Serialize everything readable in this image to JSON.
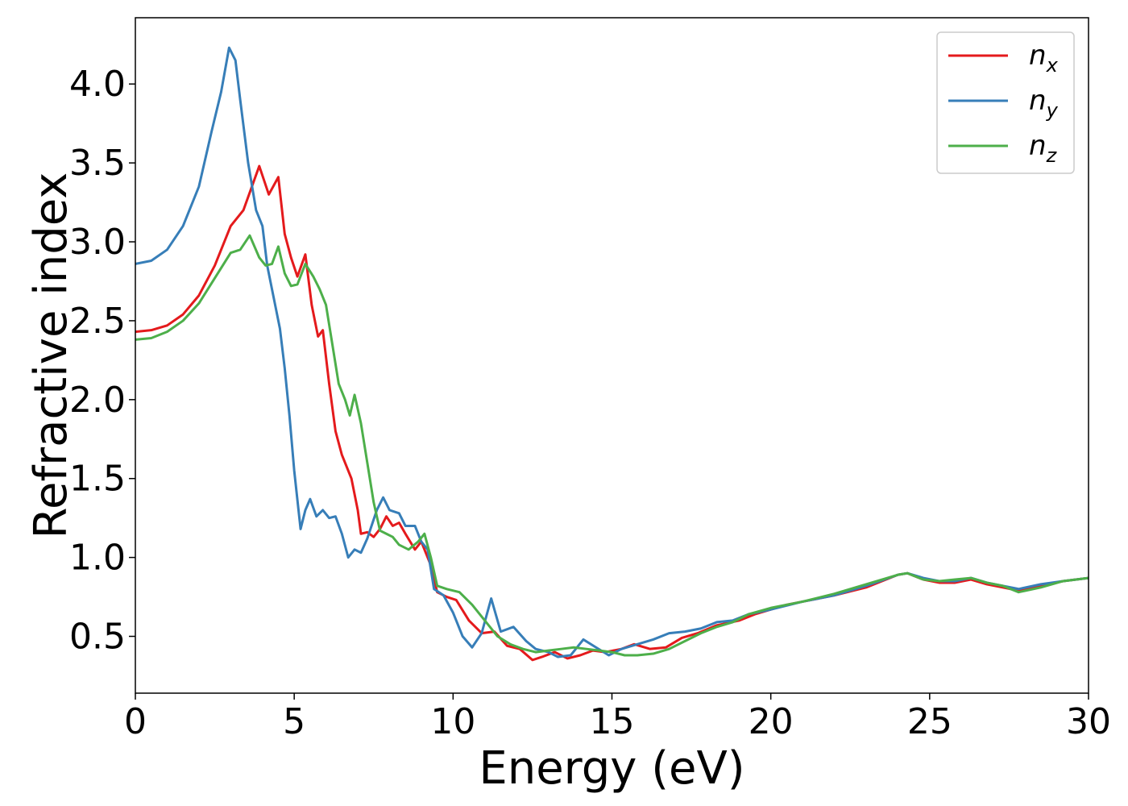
{
  "chart_data": {
    "type": "line",
    "xlabel": "Energy (eV)",
    "ylabel": "Refractive index",
    "xlim": [
      0,
      30
    ],
    "ylim": [
      0.14,
      4.42
    ],
    "xticks": [
      0,
      5,
      10,
      15,
      20,
      25,
      30
    ],
    "xtick_labels": [
      "0",
      "5",
      "10",
      "15",
      "20",
      "25",
      "30"
    ],
    "yticks": [
      0.5,
      1.0,
      1.5,
      2.0,
      2.5,
      3.0,
      3.5,
      4.0
    ],
    "ytick_labels": [
      "0.5",
      "1.0",
      "1.5",
      "2.0",
      "2.5",
      "3.0",
      "3.5",
      "4.0"
    ],
    "grid": false,
    "legend_position": "top-right",
    "series": [
      {
        "name": "n",
        "subscript": "x",
        "color": "#e41a1c",
        "points": [
          [
            0,
            2.43
          ],
          [
            0.5,
            2.44
          ],
          [
            1,
            2.47
          ],
          [
            1.5,
            2.54
          ],
          [
            2,
            2.66
          ],
          [
            2.5,
            2.85
          ],
          [
            3,
            3.1
          ],
          [
            3.4,
            3.2
          ],
          [
            3.9,
            3.48
          ],
          [
            4.2,
            3.3
          ],
          [
            4.5,
            3.41
          ],
          [
            4.7,
            3.05
          ],
          [
            4.9,
            2.9
          ],
          [
            5.1,
            2.78
          ],
          [
            5.35,
            2.92
          ],
          [
            5.55,
            2.6
          ],
          [
            5.75,
            2.4
          ],
          [
            5.9,
            2.44
          ],
          [
            6.1,
            2.1
          ],
          [
            6.3,
            1.8
          ],
          [
            6.5,
            1.65
          ],
          [
            6.8,
            1.5
          ],
          [
            7.0,
            1.3
          ],
          [
            7.1,
            1.15
          ],
          [
            7.3,
            1.16
          ],
          [
            7.5,
            1.13
          ],
          [
            7.7,
            1.18
          ],
          [
            7.9,
            1.26
          ],
          [
            8.1,
            1.2
          ],
          [
            8.3,
            1.22
          ],
          [
            8.5,
            1.15
          ],
          [
            8.8,
            1.05
          ],
          [
            9.0,
            1.1
          ],
          [
            9.3,
            0.95
          ],
          [
            9.5,
            0.78
          ],
          [
            9.8,
            0.75
          ],
          [
            10.1,
            0.73
          ],
          [
            10.5,
            0.6
          ],
          [
            10.9,
            0.52
          ],
          [
            11.3,
            0.53
          ],
          [
            11.7,
            0.44
          ],
          [
            12.1,
            0.42
          ],
          [
            12.5,
            0.35
          ],
          [
            12.8,
            0.37
          ],
          [
            13.2,
            0.4
          ],
          [
            13.6,
            0.36
          ],
          [
            14,
            0.38
          ],
          [
            14.4,
            0.41
          ],
          [
            14.8,
            0.4
          ],
          [
            15.3,
            0.42
          ],
          [
            15.7,
            0.45
          ],
          [
            16.2,
            0.42
          ],
          [
            16.7,
            0.43
          ],
          [
            17.2,
            0.49
          ],
          [
            17.7,
            0.52
          ],
          [
            18.3,
            0.57
          ],
          [
            19,
            0.6
          ],
          [
            19.5,
            0.64
          ],
          [
            20,
            0.67
          ],
          [
            20.5,
            0.7
          ],
          [
            21,
            0.72
          ],
          [
            22,
            0.76
          ],
          [
            23,
            0.81
          ],
          [
            24,
            0.89
          ],
          [
            24.3,
            0.9
          ],
          [
            24.8,
            0.86
          ],
          [
            25.3,
            0.84
          ],
          [
            25.8,
            0.84
          ],
          [
            26.3,
            0.86
          ],
          [
            26.8,
            0.83
          ],
          [
            27.3,
            0.81
          ],
          [
            27.8,
            0.79
          ],
          [
            28.5,
            0.82
          ],
          [
            29.2,
            0.85
          ],
          [
            30,
            0.87
          ]
        ]
      },
      {
        "name": "n",
        "subscript": "y",
        "color": "#377eb8",
        "points": [
          [
            0,
            2.86
          ],
          [
            0.5,
            2.88
          ],
          [
            1,
            2.95
          ],
          [
            1.5,
            3.1
          ],
          [
            2,
            3.35
          ],
          [
            2.4,
            3.7
          ],
          [
            2.7,
            3.95
          ],
          [
            2.95,
            4.23
          ],
          [
            3.15,
            4.15
          ],
          [
            3.3,
            3.9
          ],
          [
            3.55,
            3.5
          ],
          [
            3.8,
            3.2
          ],
          [
            4.0,
            3.1
          ],
          [
            4.15,
            2.85
          ],
          [
            4.35,
            2.65
          ],
          [
            4.55,
            2.45
          ],
          [
            4.7,
            2.2
          ],
          [
            4.85,
            1.9
          ],
          [
            5.0,
            1.55
          ],
          [
            5.2,
            1.18
          ],
          [
            5.35,
            1.3
          ],
          [
            5.5,
            1.37
          ],
          [
            5.7,
            1.26
          ],
          [
            5.9,
            1.3
          ],
          [
            6.1,
            1.25
          ],
          [
            6.3,
            1.26
          ],
          [
            6.5,
            1.15
          ],
          [
            6.7,
            1.0
          ],
          [
            6.9,
            1.05
          ],
          [
            7.1,
            1.03
          ],
          [
            7.3,
            1.12
          ],
          [
            7.6,
            1.3
          ],
          [
            7.8,
            1.38
          ],
          [
            8.0,
            1.3
          ],
          [
            8.3,
            1.28
          ],
          [
            8.5,
            1.2
          ],
          [
            8.8,
            1.2
          ],
          [
            9.0,
            1.1
          ],
          [
            9.2,
            1.05
          ],
          [
            9.4,
            0.8
          ],
          [
            9.7,
            0.76
          ],
          [
            10,
            0.65
          ],
          [
            10.3,
            0.5
          ],
          [
            10.6,
            0.43
          ],
          [
            10.9,
            0.52
          ],
          [
            11.2,
            0.74
          ],
          [
            11.5,
            0.53
          ],
          [
            11.9,
            0.56
          ],
          [
            12.3,
            0.47
          ],
          [
            12.6,
            0.42
          ],
          [
            13,
            0.4
          ],
          [
            13.3,
            0.37
          ],
          [
            13.7,
            0.38
          ],
          [
            14.1,
            0.48
          ],
          [
            14.5,
            0.43
          ],
          [
            14.9,
            0.38
          ],
          [
            15.3,
            0.42
          ],
          [
            15.8,
            0.45
          ],
          [
            16.3,
            0.48
          ],
          [
            16.8,
            0.52
          ],
          [
            17.3,
            0.53
          ],
          [
            17.8,
            0.55
          ],
          [
            18.3,
            0.59
          ],
          [
            18.8,
            0.6
          ],
          [
            19.3,
            0.64
          ],
          [
            20,
            0.67
          ],
          [
            21,
            0.72
          ],
          [
            22,
            0.76
          ],
          [
            23,
            0.82
          ],
          [
            24,
            0.89
          ],
          [
            24.3,
            0.9
          ],
          [
            24.8,
            0.87
          ],
          [
            25.3,
            0.85
          ],
          [
            25.8,
            0.85
          ],
          [
            26.3,
            0.87
          ],
          [
            26.8,
            0.84
          ],
          [
            27.3,
            0.82
          ],
          [
            27.8,
            0.8
          ],
          [
            28.5,
            0.83
          ],
          [
            29.2,
            0.85
          ],
          [
            30,
            0.87
          ]
        ]
      },
      {
        "name": "n",
        "subscript": "z",
        "color": "#4daf4a",
        "points": [
          [
            0,
            2.38
          ],
          [
            0.5,
            2.39
          ],
          [
            1,
            2.43
          ],
          [
            1.5,
            2.5
          ],
          [
            2,
            2.61
          ],
          [
            2.5,
            2.77
          ],
          [
            3,
            2.93
          ],
          [
            3.3,
            2.95
          ],
          [
            3.6,
            3.04
          ],
          [
            3.9,
            2.9
          ],
          [
            4.1,
            2.85
          ],
          [
            4.3,
            2.86
          ],
          [
            4.5,
            2.97
          ],
          [
            4.7,
            2.8
          ],
          [
            4.9,
            2.72
          ],
          [
            5.1,
            2.73
          ],
          [
            5.35,
            2.86
          ],
          [
            5.6,
            2.78
          ],
          [
            5.8,
            2.7
          ],
          [
            6.0,
            2.6
          ],
          [
            6.2,
            2.35
          ],
          [
            6.4,
            2.1
          ],
          [
            6.6,
            2.0
          ],
          [
            6.75,
            1.9
          ],
          [
            6.9,
            2.03
          ],
          [
            7.1,
            1.85
          ],
          [
            7.3,
            1.6
          ],
          [
            7.5,
            1.35
          ],
          [
            7.7,
            1.17
          ],
          [
            7.9,
            1.15
          ],
          [
            8.1,
            1.13
          ],
          [
            8.3,
            1.08
          ],
          [
            8.6,
            1.05
          ],
          [
            8.9,
            1.1
          ],
          [
            9.1,
            1.15
          ],
          [
            9.3,
            1.0
          ],
          [
            9.5,
            0.82
          ],
          [
            9.8,
            0.8
          ],
          [
            10.2,
            0.78
          ],
          [
            10.6,
            0.7
          ],
          [
            11,
            0.6
          ],
          [
            11.4,
            0.5
          ],
          [
            11.8,
            0.45
          ],
          [
            12.2,
            0.42
          ],
          [
            12.6,
            0.4
          ],
          [
            13,
            0.41
          ],
          [
            13.4,
            0.42
          ],
          [
            13.8,
            0.43
          ],
          [
            14.2,
            0.42
          ],
          [
            14.6,
            0.41
          ],
          [
            15.0,
            0.4
          ],
          [
            15.4,
            0.38
          ],
          [
            15.8,
            0.38
          ],
          [
            16.3,
            0.39
          ],
          [
            16.8,
            0.42
          ],
          [
            17.3,
            0.47
          ],
          [
            17.8,
            0.52
          ],
          [
            18.3,
            0.56
          ],
          [
            18.8,
            0.59
          ],
          [
            19.3,
            0.64
          ],
          [
            20,
            0.68
          ],
          [
            21,
            0.72
          ],
          [
            22,
            0.77
          ],
          [
            23,
            0.83
          ],
          [
            24,
            0.89
          ],
          [
            24.3,
            0.9
          ],
          [
            24.8,
            0.86
          ],
          [
            25.3,
            0.85
          ],
          [
            25.8,
            0.86
          ],
          [
            26.3,
            0.87
          ],
          [
            26.8,
            0.84
          ],
          [
            27.3,
            0.82
          ],
          [
            27.8,
            0.78
          ],
          [
            28.5,
            0.81
          ],
          [
            29.2,
            0.85
          ],
          [
            30,
            0.87
          ]
        ]
      }
    ]
  }
}
